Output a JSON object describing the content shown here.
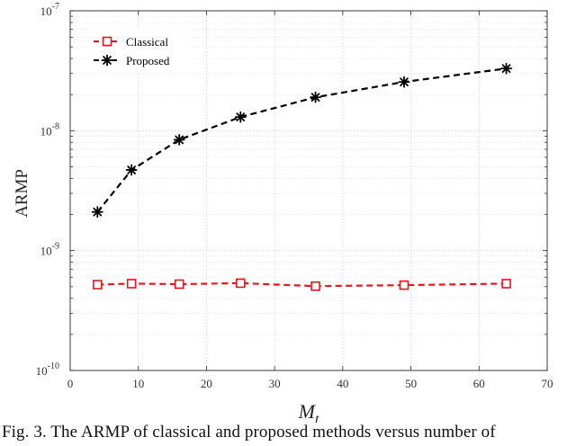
{
  "chart_data": {
    "type": "line",
    "title": "",
    "xlabel": "M",
    "xlabel_sub": "t",
    "ylabel": "ARMP",
    "xlim": [
      0,
      70
    ],
    "xticks": [
      0,
      10,
      20,
      30,
      40,
      50,
      60,
      70
    ],
    "ylim": [
      1e-10,
      1e-07
    ],
    "yscale": "log",
    "yticks": [
      {
        "base": "10",
        "exp": "-10"
      },
      {
        "base": "10",
        "exp": "-9"
      },
      {
        "base": "10",
        "exp": "-8"
      },
      {
        "base": "10",
        "exp": "-7"
      }
    ],
    "grid": true,
    "legend_position": "top-left",
    "series": [
      {
        "name": "Classical",
        "color": "#e8141e",
        "marker": "square",
        "linestyle": "dashed",
        "x": [
          4,
          9,
          16,
          25,
          36,
          49,
          64
        ],
        "y": [
          5.2e-10,
          5.3e-10,
          5.25e-10,
          5.35e-10,
          5.05e-10,
          5.15e-10,
          5.3e-10
        ]
      },
      {
        "name": "Proposed",
        "color": "#000000",
        "marker": "star",
        "linestyle": "dashed",
        "x": [
          4,
          9,
          16,
          25,
          36,
          49,
          64
        ],
        "y": [
          2.1e-09,
          4.7e-09,
          8.4e-09,
          1.3e-08,
          1.9e-08,
          2.55e-08,
          3.3e-08
        ]
      }
    ]
  },
  "caption": "Fig. 3.  The ARMP of classical and proposed methods versus number of"
}
